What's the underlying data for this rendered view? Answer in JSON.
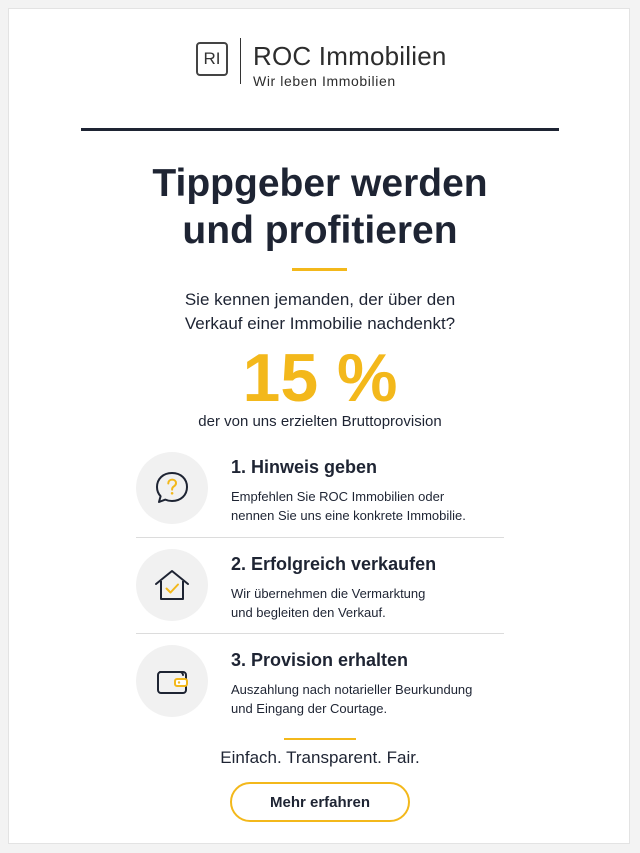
{
  "colors": {
    "accent": "#f3b81b",
    "text": "#1e2433"
  },
  "logo": {
    "mark": "RI",
    "name": "ROC Immobilien",
    "tagline": "Wir leben Immobilien"
  },
  "headline": {
    "line1": "Tippgeber werden",
    "line2": "und profitieren"
  },
  "intro": {
    "line1": "Sie kennen jemanden, der über den",
    "line2": "Verkauf einer Immobilie nachdenkt?"
  },
  "offer": {
    "percent": "15 %",
    "caption": "der von uns erzielten Bruttoprovision"
  },
  "steps": [
    {
      "icon": "question-bubble-icon",
      "title": "1. Hinweis geben",
      "line1": "Empfehlen Sie ROC Immobilien oder",
      "line2": "nennen Sie uns eine konkrete Immobilie."
    },
    {
      "icon": "house-check-icon",
      "title": "2. Erfolgreich verkaufen",
      "line1": "Wir übernehmen die Vermarktung",
      "line2": "und begleiten den Verkauf."
    },
    {
      "icon": "wallet-icon",
      "title": "3. Provision erhalten",
      "line1": "Auszahlung nach notarieller Beurkundung",
      "line2": "und Eingang der Courtage."
    }
  ],
  "tagline": "Einfach. Transparent. Fair.",
  "cta": {
    "label": "Mehr erfahren"
  }
}
